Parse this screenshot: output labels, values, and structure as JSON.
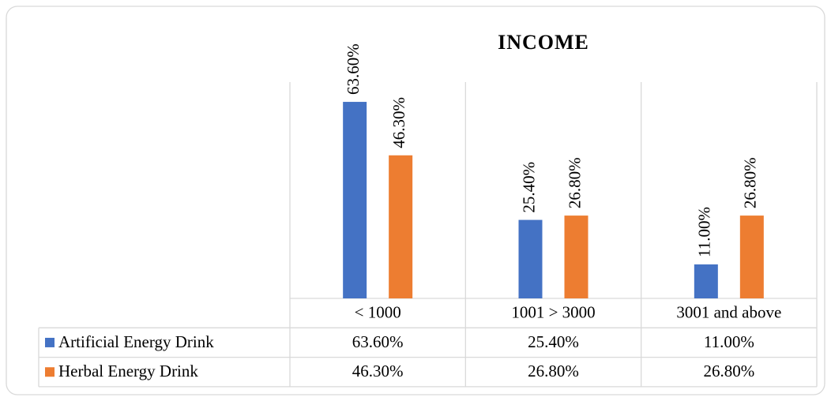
{
  "chart_data": {
    "type": "bar",
    "title": "INCOME",
    "categories": [
      "< 1000",
      "1001 > 3000",
      "3001 and above"
    ],
    "series": [
      {
        "name": "Artificial Energy Drink",
        "color": "#4472c4",
        "values": [
          63.6,
          25.4,
          11.0
        ],
        "value_labels": [
          "63.60%",
          "25.40%",
          "11.00%"
        ]
      },
      {
        "name": "Herbal Energy Drink",
        "color": "#ed7d31",
        "values": [
          46.3,
          26.8,
          26.8
        ],
        "value_labels": [
          "46.30%",
          "26.80%",
          "26.80%"
        ]
      }
    ],
    "ylim": [
      0,
      70
    ],
    "legend": "table"
  }
}
